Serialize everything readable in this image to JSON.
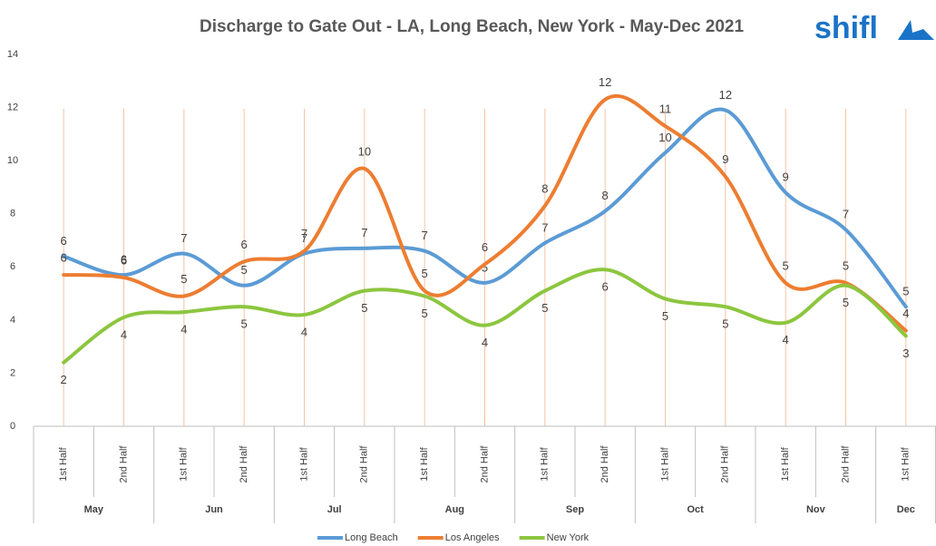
{
  "chart_data": {
    "type": "line",
    "title": "Discharge to Gate Out - LA, Long Beach, New York - May-Dec 2021",
    "logo": "shifl",
    "groups": [
      {
        "name": "May",
        "categories": [
          "1st Half",
          "2nd Half"
        ]
      },
      {
        "name": "Jun",
        "categories": [
          "1st Half",
          "2nd Half"
        ]
      },
      {
        "name": "Jul",
        "categories": [
          "1st Half",
          "2nd Half"
        ]
      },
      {
        "name": "Aug",
        "categories": [
          "1st Half",
          "2nd Half"
        ]
      },
      {
        "name": "Sep",
        "categories": [
          "1st Half",
          "2nd Half"
        ]
      },
      {
        "name": "Oct",
        "categories": [
          "1st Half",
          "2nd Half"
        ]
      },
      {
        "name": "Nov",
        "categories": [
          "1st Half",
          "2nd Half"
        ]
      },
      {
        "name": "Dec",
        "categories": [
          "1st Half"
        ]
      }
    ],
    "series": [
      {
        "name": "Long Beach",
        "color": "#5b9bd5",
        "values": [
          6.4,
          5.7,
          6.5,
          5.3,
          6.5,
          6.7,
          6.6,
          5.4,
          6.9,
          8.1,
          10.3,
          11.9,
          8.8,
          7.4,
          4.5
        ],
        "value_labels": [
          6,
          6,
          7,
          5,
          7,
          7,
          7,
          5,
          7,
          8,
          10,
          12,
          9,
          7,
          5
        ]
      },
      {
        "name": "Los Angeles",
        "color": "#ed7d31",
        "values": [
          5.7,
          5.6,
          4.9,
          6.2,
          6.6,
          9.7,
          5.1,
          6.1,
          8.3,
          12.3,
          11.3,
          9.4,
          5.4,
          5.4,
          3.6
        ],
        "value_labels": [
          6,
          6,
          5,
          6,
          7,
          10,
          5,
          6,
          8,
          12,
          11,
          9,
          5,
          5,
          4
        ]
      },
      {
        "name": "New York",
        "color": "#8cc63f",
        "values": [
          2.4,
          4.1,
          4.3,
          4.5,
          4.2,
          5.1,
          4.9,
          3.8,
          5.1,
          5.9,
          4.8,
          4.5,
          3.9,
          5.3,
          3.4
        ],
        "value_labels": [
          2,
          4,
          4,
          5,
          4,
          5,
          5,
          4,
          5,
          6,
          5,
          5,
          4,
          5,
          3
        ]
      }
    ],
    "ylim": [
      0,
      14
    ],
    "yticks": [
      0,
      2,
      4,
      6,
      8,
      10,
      12,
      14
    ],
    "grid": false,
    "legend": "bottom"
  }
}
